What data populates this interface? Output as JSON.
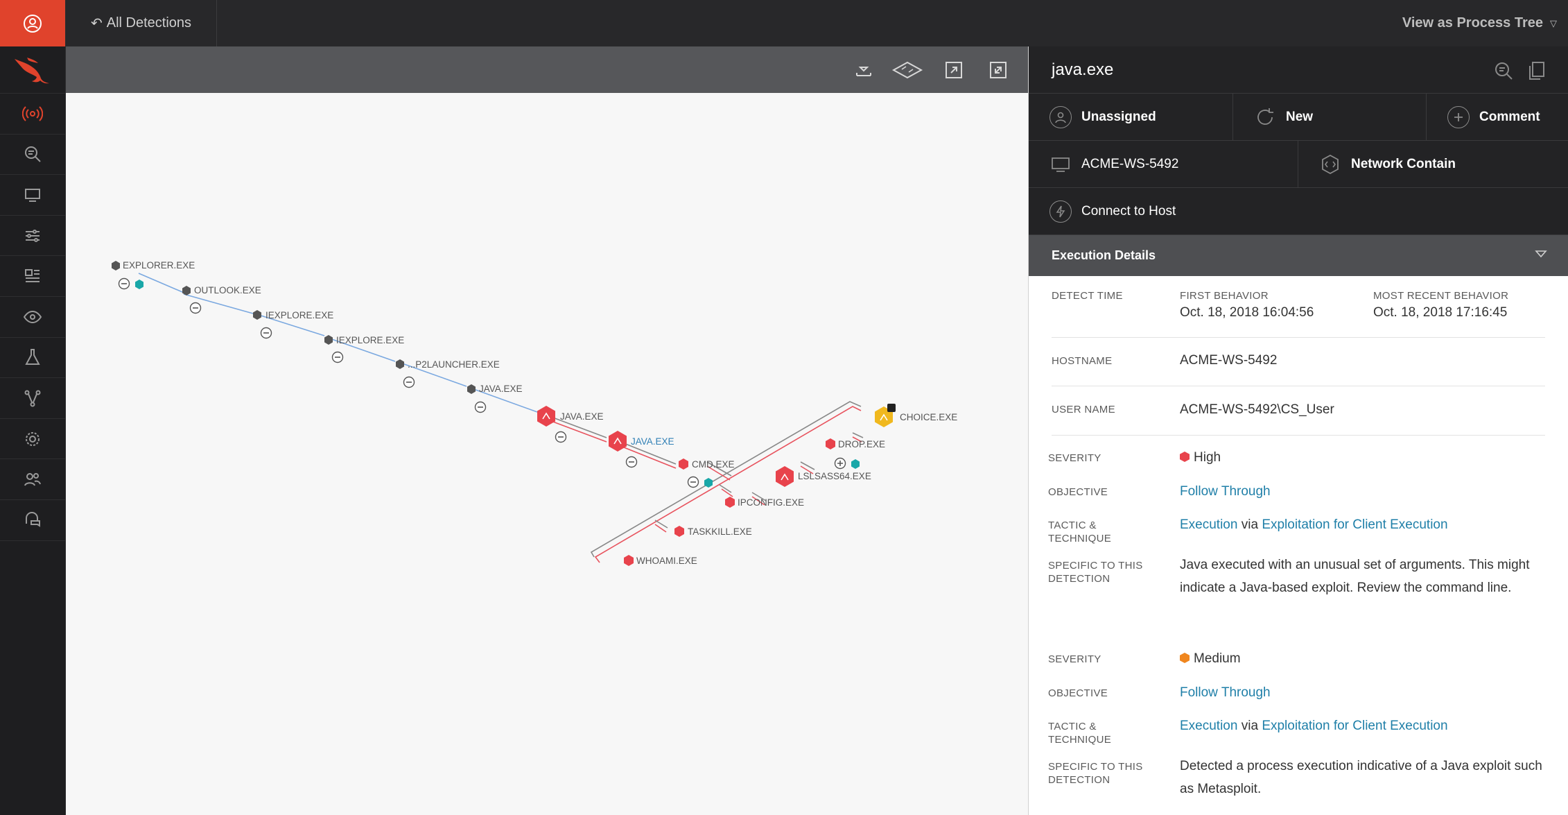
{
  "nav": {
    "back_label": "All Detections",
    "view_as_label": "View as Process Tree"
  },
  "graph": {
    "nodes": [
      {
        "label": "EXPLORER.EXE",
        "severity": "none"
      },
      {
        "label": "OUTLOOK.EXE",
        "severity": "none"
      },
      {
        "label": "IEXPLORE.EXE",
        "severity": "none"
      },
      {
        "label": "IEXPLORE.EXE",
        "severity": "none"
      },
      {
        "label": "...P2LAUNCHER.EXE",
        "severity": "none"
      },
      {
        "label": "JAVA.EXE",
        "severity": "none"
      },
      {
        "label": "JAVA.EXE",
        "severity": "high"
      },
      {
        "label": "JAVA.EXE",
        "severity": "high",
        "selected": true
      },
      {
        "label": "CMD.EXE",
        "severity": "high"
      },
      {
        "label": "LSLSASS64.EXE",
        "severity": "high"
      },
      {
        "label": "IPCONFIG.EXE",
        "severity": "high"
      },
      {
        "label": "TASKKILL.EXE",
        "severity": "high"
      },
      {
        "label": "WHOAMI.EXE",
        "severity": "high"
      },
      {
        "label": "DROP.EXE",
        "severity": "high"
      },
      {
        "label": "CHOICE.EXE",
        "severity": "medium"
      }
    ]
  },
  "detail": {
    "title": "java.exe",
    "actions": {
      "assign": "Unassigned",
      "status": "New",
      "comment": "Comment",
      "host": "ACME-WS-5492",
      "contain": "Network Contain",
      "connect": "Connect to Host"
    },
    "section_title": "Execution Details",
    "labels": {
      "detect_time": "DETECT TIME",
      "first_behavior": "FIRST BEHAVIOR",
      "recent_behavior": "MOST RECENT BEHAVIOR",
      "hostname": "HOSTNAME",
      "username": "USER NAME",
      "severity": "SEVERITY",
      "objective": "OBJECTIVE",
      "tactic_1": "TACTIC &",
      "tactic_2": "TECHNIQUE",
      "specific_1": "SPECIFIC TO THIS",
      "specific_2": "DETECTION"
    },
    "first_behavior": "Oct. 18, 2018 16:04:56",
    "recent_behavior": "Oct. 18, 2018 17:16:45",
    "hostname": "ACME-WS-5492",
    "username": "ACME-WS-5492\\CS_User",
    "via": "via",
    "behaviors": [
      {
        "severity": "High",
        "severity_color": "#e8434c",
        "objective": "Follow Through",
        "tactic": "Execution",
        "technique": "Exploitation for Client Execution",
        "specific": "Java executed with an unusual set of arguments. This might indicate a Java-based exploit. Review the command line."
      },
      {
        "severity": "Medium",
        "severity_color": "#f0861e",
        "objective": "Follow Through",
        "tactic": "Execution",
        "technique": "Exploitation for Client Execution",
        "specific": "Detected a process execution indicative of a Java exploit such as Metasploit."
      }
    ]
  },
  "colors": {
    "accent_red": "#e0432c",
    "high": "#e8434c",
    "medium": "#f0b81e",
    "link": "#1f7fa8"
  }
}
